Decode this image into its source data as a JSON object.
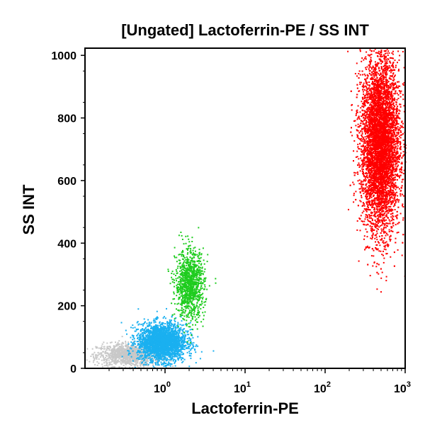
{
  "chart_data": {
    "type": "scatter",
    "title": "[Ungated] Lactoferrin-PE / SS INT",
    "xlabel": "Lactoferrin-PE",
    "ylabel": "SS INT",
    "x_scale": "log",
    "xlim": [
      0.1,
      1000
    ],
    "ylim": [
      0,
      1023
    ],
    "x_ticks": [
      {
        "value": 1,
        "base": "10",
        "exp": "0"
      },
      {
        "value": 10,
        "base": "10",
        "exp": "1"
      },
      {
        "value": 100,
        "base": "10",
        "exp": "2"
      },
      {
        "value": 1000,
        "base": "10",
        "exp": "3"
      }
    ],
    "y_ticks": [
      {
        "value": 0,
        "label": "0"
      },
      {
        "value": 200,
        "label": "200"
      },
      {
        "value": 400,
        "label": "400"
      },
      {
        "value": 600,
        "label": "600"
      },
      {
        "value": 800,
        "label": "800"
      },
      {
        "value": 1000,
        "label": "1000"
      }
    ],
    "grid": false,
    "legend": "none",
    "series": [
      {
        "color": "#c8c8c8",
        "center": {
          "x": 0.35,
          "y": 45
        },
        "spread": {
          "log_x": 0.2,
          "y": 18
        },
        "n": 1200
      },
      {
        "color": "#1ab0f0",
        "center": {
          "x": 0.9,
          "y": 85
        },
        "spread": {
          "log_x": 0.15,
          "y": 30
        },
        "n": 2600
      },
      {
        "color": "#1ecc1e",
        "center": {
          "x": 2.0,
          "y": 270
        },
        "spread": {
          "log_x": 0.09,
          "y": 55
        },
        "n": 1100
      },
      {
        "color": "#ff0000",
        "center": {
          "x": 480,
          "y": 720
        },
        "spread": {
          "log_x": 0.12,
          "y": 140
        },
        "n": 6500
      }
    ]
  }
}
